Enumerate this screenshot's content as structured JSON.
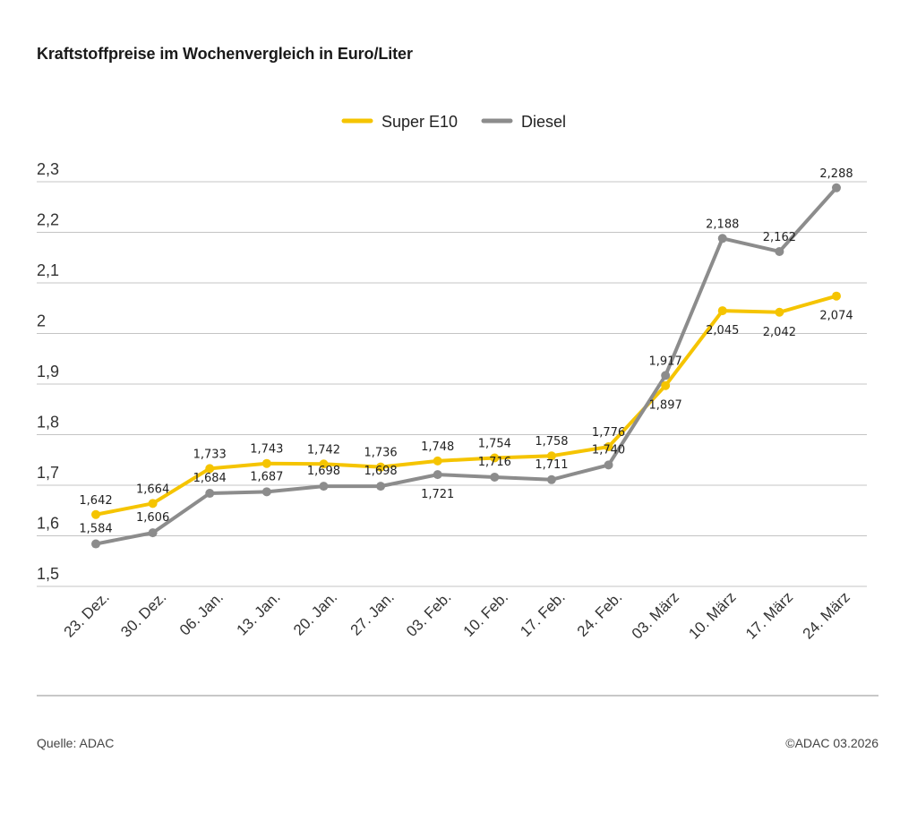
{
  "header": {
    "title": "Kraftstoffpreise im Wochenvergleich in Euro/Liter"
  },
  "footer": {
    "source": "Quelle: ADAC",
    "copyright": "©ADAC 03.2026"
  },
  "colors": {
    "super_e10": "#f5c400",
    "diesel": "#8c8c8c",
    "grid": "#c4c4c4"
  },
  "chart_data": {
    "type": "line",
    "title": "Kraftstoffpreise im Wochenvergleich in Euro/Liter",
    "xlabel": "",
    "ylabel": "",
    "ylim": [
      1.5,
      2.3
    ],
    "yticks": [
      "1,5",
      "1,6",
      "1,7",
      "1,8",
      "1,9",
      "2",
      "2,1",
      "2,2",
      "2,3"
    ],
    "grid": true,
    "legend": "top-center",
    "categories": [
      "23. Dez.",
      "30. Dez.",
      "06. Jan.",
      "13. Jan.",
      "20. Jan.",
      "27. Jan.",
      "03. Feb.",
      "10. Feb.",
      "17. Feb.",
      "24. Feb.",
      "03. März",
      "10. März",
      "17. März",
      "24. März"
    ],
    "series": [
      {
        "name": "Super E10",
        "color": "#f5c400",
        "values": [
          1.642,
          1.664,
          1.733,
          1.743,
          1.742,
          1.736,
          1.748,
          1.754,
          1.758,
          1.776,
          1.897,
          2.045,
          2.042,
          2.074
        ],
        "labels": [
          "1,642",
          "1,664",
          "1,733",
          "1,743",
          "1,742",
          "1,736",
          "1,748",
          "1,754",
          "1,758",
          "1,776",
          "1,897",
          "2,045",
          "2,042",
          "2,074"
        ]
      },
      {
        "name": "Diesel",
        "color": "#8c8c8c",
        "values": [
          1.584,
          1.606,
          1.684,
          1.687,
          1.698,
          1.698,
          1.721,
          1.716,
          1.711,
          1.74,
          1.917,
          2.188,
          2.162,
          2.288
        ],
        "labels": [
          "1,584",
          "1,606",
          "1,684",
          "1,687",
          "1,698",
          "1,698",
          "1,721",
          "1,716",
          "1,711",
          "1,740",
          "1,917",
          "2,188",
          "2,162",
          "2,288"
        ]
      }
    ]
  }
}
